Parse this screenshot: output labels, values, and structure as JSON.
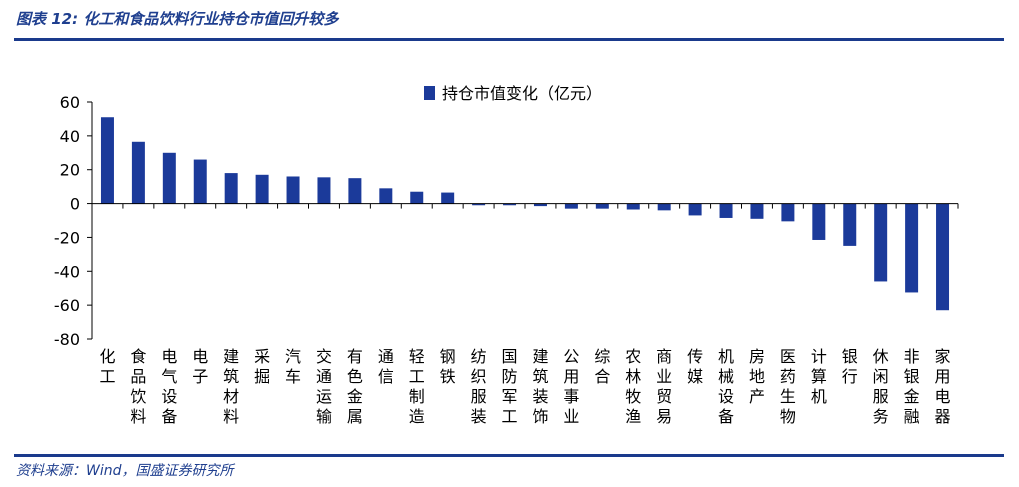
{
  "figure": {
    "title": "图表 12:  化工和食品饮料行业持仓市值回升较多",
    "source": "资料来源：Wind，国盛证券研究所"
  },
  "colors": {
    "bar": "#1b3a9a",
    "accent": "#1a3a8c",
    "axis": "#000000"
  },
  "chart_data": {
    "type": "bar",
    "legend_position": "top-center",
    "grid": false,
    "ylim": [
      -80,
      60
    ],
    "yticks": [
      60,
      40,
      20,
      0,
      -20,
      -40,
      -60,
      -80
    ],
    "categories": [
      "化工",
      "食品饮料",
      "电气设备",
      "电子",
      "建筑材料",
      "采掘",
      "汽车",
      "交通运输",
      "有色金属",
      "通信",
      "轻工制造",
      "钢铁",
      "纺织服装",
      "国防军工",
      "建筑装饰",
      "公用事业",
      "综合",
      "农林牧渔",
      "商业贸易",
      "传媒",
      "机械设备",
      "房地产",
      "医药生物",
      "计算机",
      "银行",
      "休闲服务",
      "非银金融",
      "家用电器"
    ],
    "series": [
      {
        "name": "持仓市值变化（亿元）",
        "values": [
          51,
          36.5,
          30,
          26,
          18,
          17,
          16,
          15.5,
          15,
          9,
          7,
          6.5,
          -1,
          -1,
          -1.5,
          -3,
          -3,
          -3.5,
          -4,
          -7,
          -8.5,
          -9,
          -10.5,
          -21.5,
          -25,
          -46,
          -52.5,
          -63
        ]
      }
    ]
  }
}
